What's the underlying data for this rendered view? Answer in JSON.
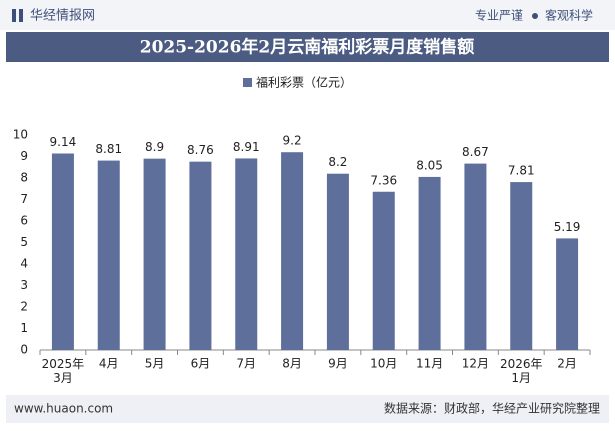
{
  "header": {
    "brand": "华经情报网",
    "slogan_left": "专业严谨",
    "slogan_right": "客观科学"
  },
  "chart_data": {
    "type": "bar",
    "title": "2025-2026年2月云南福利彩票月度销售额",
    "categories": [
      "2025年\n3月",
      "4月",
      "5月",
      "6月",
      "7月",
      "8月",
      "9月",
      "10月",
      "11月",
      "12月",
      "2026年\n1月",
      "2月"
    ],
    "series": [
      {
        "name": "福利彩票（亿元）",
        "color": "#5f6f9c",
        "values": [
          9.14,
          8.81,
          8.9,
          8.76,
          8.91,
          9.2,
          8.2,
          7.36,
          8.05,
          8.67,
          7.81,
          5.19
        ]
      }
    ],
    "ylim": [
      0,
      10
    ],
    "yticks": [
      0,
      1,
      2,
      3,
      4,
      5,
      6,
      7,
      8,
      9,
      10
    ],
    "grid": false
  },
  "footer": {
    "website": "www.huaon.com",
    "source": "数据来源：财政部，华经产业研究院整理"
  }
}
